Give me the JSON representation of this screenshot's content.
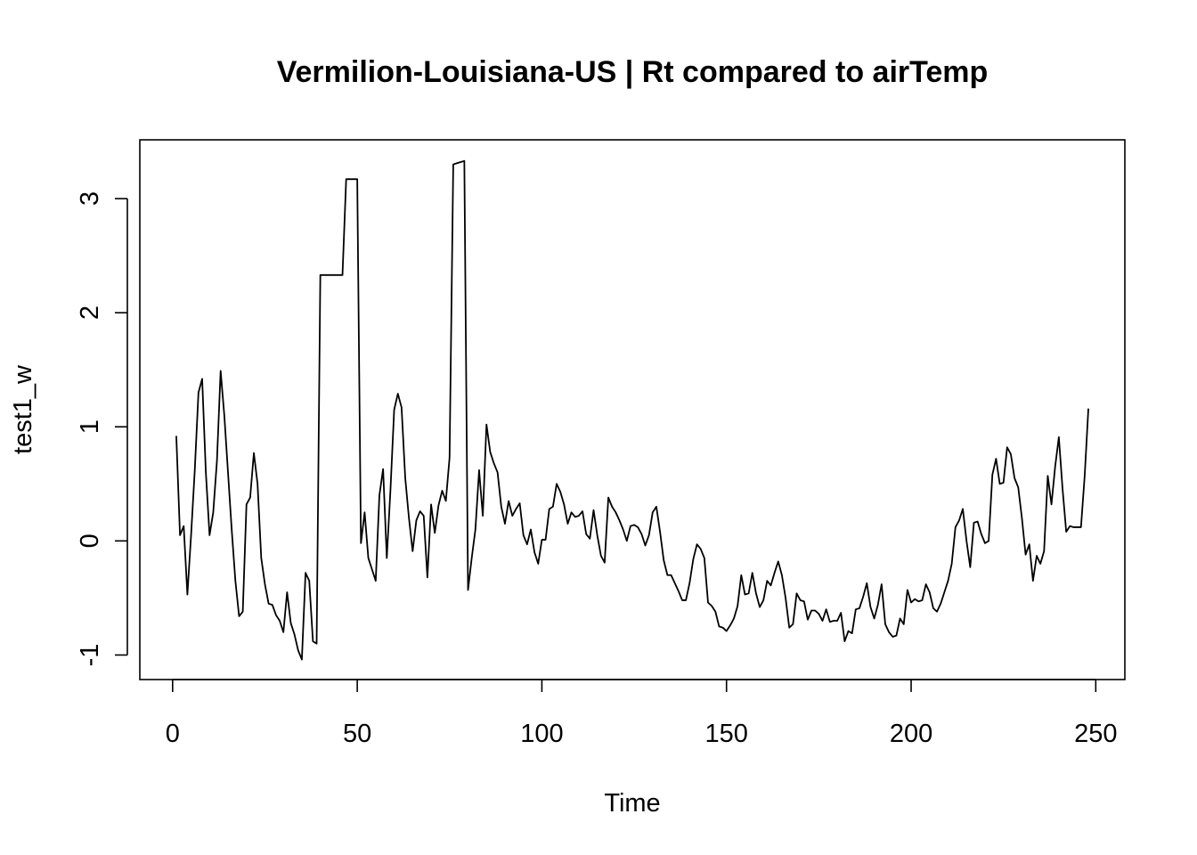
{
  "chart_data": {
    "type": "line",
    "title": "Vermilion-Louisiana-US | Rt compared to airTemp",
    "xlabel": "Time",
    "ylabel": "test1_w",
    "xlim": [
      -8.88,
      257.88
    ],
    "ylim": [
      -1.215,
      3.515
    ],
    "xticks": [
      0,
      50,
      100,
      150,
      200,
      250
    ],
    "yticks": [
      -1,
      0,
      1,
      2,
      3
    ],
    "grid": false,
    "legend": "none",
    "line_color": "#000000",
    "series": [
      {
        "x": [
          1,
          2,
          3,
          4,
          5,
          6,
          7,
          8,
          9,
          10,
          11,
          12,
          13,
          14,
          15,
          16,
          17,
          18,
          19,
          20,
          21,
          22,
          23,
          24,
          25,
          26,
          27,
          28,
          29,
          30,
          31,
          32,
          33,
          34,
          35,
          36,
          37,
          38,
          39,
          40,
          41,
          42,
          43,
          44,
          45,
          46,
          47,
          48,
          49,
          50,
          51,
          52,
          53,
          54,
          55,
          56,
          57,
          58,
          59,
          60,
          61,
          62,
          63,
          64,
          65,
          66,
          67,
          68,
          69,
          70,
          71,
          72,
          73,
          74,
          75,
          76,
          77,
          78,
          79,
          80,
          81,
          82,
          83,
          84,
          85,
          86,
          87,
          88,
          89,
          90,
          91,
          92,
          93,
          94,
          95,
          96,
          97,
          98,
          99,
          100,
          101,
          102,
          103,
          104,
          105,
          106,
          107,
          108,
          109,
          110,
          111,
          112,
          113,
          114,
          115,
          116,
          117,
          118,
          119,
          120,
          121,
          122,
          123,
          124,
          125,
          126,
          127,
          128,
          129,
          130,
          131,
          132,
          133,
          134,
          135,
          136,
          137,
          138,
          139,
          140,
          141,
          142,
          143,
          144,
          145,
          146,
          147,
          148,
          149,
          150,
          151,
          152,
          153,
          154,
          155,
          156,
          157,
          158,
          159,
          160,
          161,
          162,
          163,
          164,
          165,
          166,
          167,
          168,
          169,
          170,
          171,
          172,
          173,
          174,
          175,
          176,
          177,
          178,
          179,
          180,
          181,
          182,
          183,
          184,
          185,
          186,
          187,
          188,
          189,
          190,
          191,
          192,
          193,
          194,
          195,
          196,
          197,
          198,
          199,
          200,
          201,
          202,
          203,
          204,
          205,
          206,
          207,
          208,
          209,
          210,
          211,
          212,
          213,
          214,
          215,
          216,
          217,
          218,
          219,
          220,
          221,
          222,
          223,
          224,
          225,
          226,
          227,
          228,
          229,
          230,
          231,
          232,
          233,
          234,
          235,
          236,
          237,
          238,
          239,
          240,
          241,
          242,
          243,
          244,
          245,
          246,
          247,
          248
        ],
        "y": [
          0.92,
          0.05,
          0.13,
          -0.47,
          0.05,
          0.62,
          1.3,
          1.42,
          0.6,
          0.05,
          0.25,
          0.7,
          1.49,
          1.1,
          0.6,
          0.1,
          -0.35,
          -0.66,
          -0.62,
          0.32,
          0.38,
          0.77,
          0.5,
          -0.15,
          -0.38,
          -0.55,
          -0.56,
          -0.65,
          -0.7,
          -0.8,
          -0.45,
          -0.72,
          -0.82,
          -0.96,
          -1.04,
          -0.28,
          -0.35,
          -0.88,
          -0.9,
          2.33,
          2.33,
          2.33,
          2.33,
          2.33,
          2.33,
          2.33,
          3.17,
          3.17,
          3.17,
          3.17,
          -0.02,
          0.25,
          -0.15,
          -0.25,
          -0.35,
          0.4,
          0.63,
          -0.15,
          0.45,
          1.15,
          1.29,
          1.17,
          0.55,
          0.2,
          -0.09,
          0.18,
          0.26,
          0.22,
          -0.32,
          0.32,
          0.07,
          0.31,
          0.44,
          0.35,
          0.73,
          3.3,
          3.31,
          3.32,
          3.33,
          -0.43,
          -0.15,
          0.1,
          0.62,
          0.22,
          1.02,
          0.78,
          0.68,
          0.6,
          0.3,
          0.15,
          0.35,
          0.22,
          0.28,
          0.33,
          0.05,
          -0.03,
          0.1,
          -0.1,
          -0.2,
          0.01,
          0.01,
          0.28,
          0.3,
          0.5,
          0.43,
          0.32,
          0.15,
          0.25,
          0.21,
          0.22,
          0.26,
          0.06,
          0.02,
          0.27,
          0.05,
          -0.13,
          -0.19,
          0.38,
          0.3,
          0.25,
          0.18,
          0.1,
          0.0,
          0.13,
          0.14,
          0.12,
          0.06,
          -0.04,
          0.05,
          0.25,
          0.3,
          0.08,
          -0.17,
          -0.3,
          -0.3,
          -0.37,
          -0.44,
          -0.52,
          -0.52,
          -0.37,
          -0.16,
          -0.03,
          -0.07,
          -0.15,
          -0.54,
          -0.57,
          -0.62,
          -0.75,
          -0.76,
          -0.79,
          -0.74,
          -0.68,
          -0.57,
          -0.3,
          -0.47,
          -0.46,
          -0.28,
          -0.46,
          -0.58,
          -0.52,
          -0.35,
          -0.39,
          -0.28,
          -0.18,
          -0.3,
          -0.5,
          -0.76,
          -0.73,
          -0.46,
          -0.52,
          -0.53,
          -0.69,
          -0.61,
          -0.61,
          -0.64,
          -0.7,
          -0.6,
          -0.71,
          -0.7,
          -0.7,
          -0.63,
          -0.88,
          -0.79,
          -0.81,
          -0.6,
          -0.59,
          -0.49,
          -0.37,
          -0.58,
          -0.68,
          -0.56,
          -0.38,
          -0.73,
          -0.8,
          -0.84,
          -0.83,
          -0.68,
          -0.73,
          -0.43,
          -0.54,
          -0.51,
          -0.53,
          -0.52,
          -0.38,
          -0.45,
          -0.59,
          -0.62,
          -0.55,
          -0.45,
          -0.35,
          -0.2,
          0.12,
          0.18,
          0.28,
          0.0,
          -0.23,
          0.16,
          0.17,
          0.06,
          -0.02,
          0.0,
          0.58,
          0.72,
          0.5,
          0.51,
          0.82,
          0.76,
          0.55,
          0.47,
          0.2,
          -0.12,
          -0.03,
          -0.35,
          -0.13,
          -0.2,
          -0.09,
          0.57,
          0.32,
          0.65,
          0.91,
          0.46,
          0.08,
          0.13,
          0.12,
          0.12,
          0.12,
          0.57,
          1.16
        ]
      }
    ]
  }
}
